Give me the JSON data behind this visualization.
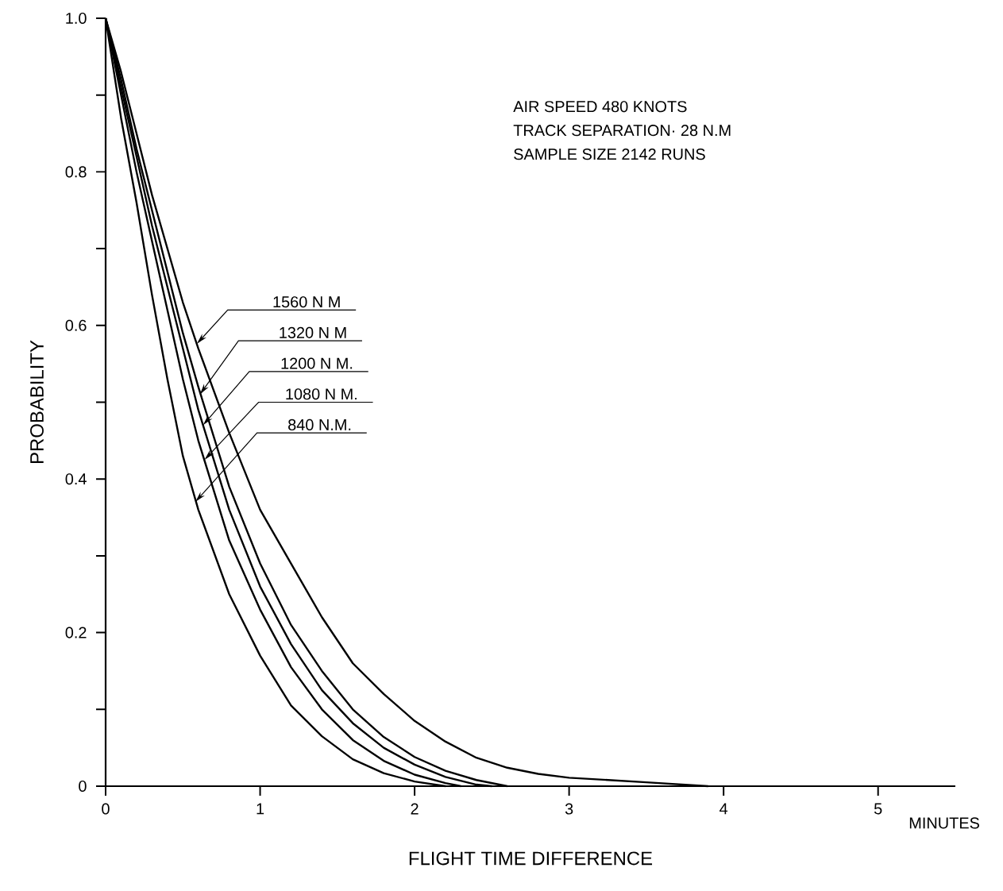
{
  "chart_data": {
    "type": "line",
    "xlabel": "FLIGHT TIME DIFFERENCE",
    "ylabel": "PROBABILITY",
    "annotations": [
      "AIR SPEED  480 KNOTS",
      "TRACK SEPARATION· 28 N.M",
      "SAMPLE SIZE  2142 RUNS",
      "MINUTES",
      {
        "text": "1560 N M",
        "x": 0.59,
        "y": 0.576
      },
      {
        "text": "1320 N M",
        "x": 0.61,
        "y": 0.51
      },
      {
        "text": "1200 N M.",
        "x": 0.63,
        "y": 0.47
      },
      {
        "text": "1080 N M.",
        "x": 0.64,
        "y": 0.425
      },
      {
        "text": "840 N.M.",
        "x": 0.58,
        "y": 0.37
      }
    ],
    "xlim": [
      0,
      5.5
    ],
    "ylim": [
      0,
      1
    ],
    "xticks": [
      0,
      1,
      2,
      3,
      4,
      5
    ],
    "yticks": [
      0,
      {
        "value": 0.1,
        "label": null
      },
      0.2,
      {
        "value": 0.3,
        "label": null
      },
      0.4,
      {
        "value": 0.5,
        "label": null
      },
      0.6,
      {
        "value": 0.7,
        "label": null
      },
      0.8,
      {
        "value": 0.9,
        "label": null
      },
      {
        "value": 1,
        "label": "1.0"
      }
    ],
    "marker": "none",
    "line_style": "solid",
    "series": [
      {
        "color": "#000000",
        "x": [
          0,
          0.1,
          0.2,
          0.3,
          0.4,
          0.5,
          0.6,
          0.8,
          1.0,
          1.2,
          1.4,
          1.6,
          1.8,
          2.0,
          2.2,
          2.4,
          2.6,
          2.8,
          3.0,
          3.5,
          3.9
        ],
        "values": [
          1,
          0.93,
          0.85,
          0.77,
          0.7,
          0.63,
          0.57,
          0.46,
          0.36,
          0.29,
          0.22,
          0.16,
          0.12,
          0.085,
          0.058,
          0.037,
          0.024,
          0.016,
          0.011,
          0.005,
          0
        ]
      },
      {
        "color": "#000000",
        "x": [
          0,
          0.1,
          0.2,
          0.3,
          0.4,
          0.5,
          0.6,
          0.8,
          1.0,
          1.2,
          1.4,
          1.6,
          1.8,
          2.0,
          2.2,
          2.4,
          2.6
        ],
        "values": [
          1,
          0.92,
          0.83,
          0.75,
          0.67,
          0.59,
          0.52,
          0.39,
          0.29,
          0.21,
          0.15,
          0.1,
          0.064,
          0.038,
          0.02,
          0.008,
          0
        ]
      },
      {
        "color": "#000000",
        "x": [
          0,
          0.1,
          0.2,
          0.3,
          0.4,
          0.5,
          0.6,
          0.8,
          1.0,
          1.2,
          1.4,
          1.6,
          1.8,
          2.0,
          2.2,
          2.4,
          2.5
        ],
        "values": [
          1,
          0.91,
          0.82,
          0.73,
          0.65,
          0.57,
          0.49,
          0.36,
          0.26,
          0.185,
          0.125,
          0.082,
          0.05,
          0.028,
          0.012,
          0.002,
          0
        ]
      },
      {
        "color": "#000000",
        "x": [
          0,
          0.1,
          0.2,
          0.3,
          0.4,
          0.5,
          0.6,
          0.8,
          1.0,
          1.2,
          1.4,
          1.6,
          1.8,
          2.0,
          2.2,
          2.3
        ],
        "values": [
          1,
          0.9,
          0.8,
          0.71,
          0.62,
          0.53,
          0.45,
          0.32,
          0.23,
          0.155,
          0.1,
          0.06,
          0.033,
          0.015,
          0.004,
          0
        ]
      },
      {
        "color": "#000000",
        "x": [
          0,
          0.1,
          0.2,
          0.3,
          0.4,
          0.5,
          0.6,
          0.8,
          1.0,
          1.2,
          1.4,
          1.6,
          1.8,
          2.0,
          2.2
        ],
        "values": [
          1,
          0.87,
          0.76,
          0.64,
          0.53,
          0.43,
          0.36,
          0.25,
          0.17,
          0.105,
          0.065,
          0.035,
          0.017,
          0.006,
          0
        ]
      }
    ]
  }
}
